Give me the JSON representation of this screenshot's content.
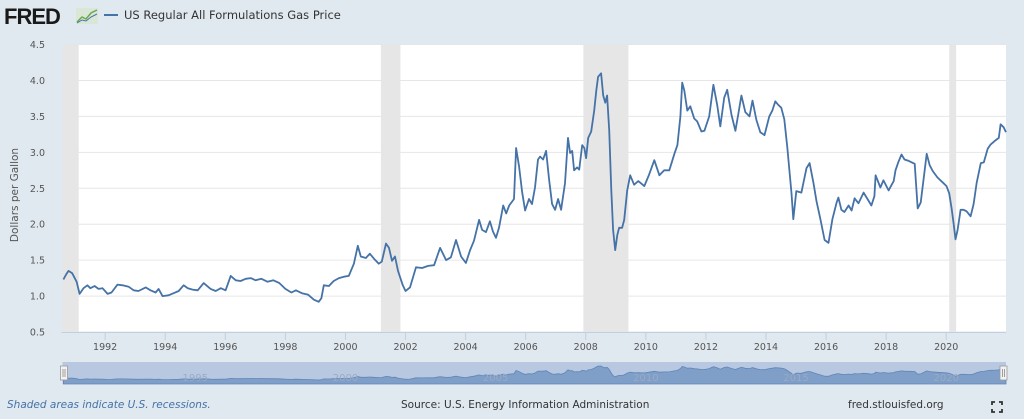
{
  "header": {
    "logo_text": "FRED",
    "logo_icon": "line-graph-icon",
    "legend_label": "US Regular All Formulations Gas Price"
  },
  "footer": {
    "recession_note": "Shaded areas indicate U.S. recessions.",
    "source": "Source: U.S. Energy Information Administration",
    "site": "fred.stlouisfed.org",
    "fullscreen_icon": "fullscreen-icon"
  },
  "colors": {
    "series": "#4572a7",
    "recession": "#e6e6e6",
    "background": "#e1e9f0",
    "navigator_fill": "#7f9ec8",
    "navigator_bg": "#b8c8e0"
  },
  "chart_data": {
    "type": "line",
    "title": "US Regular All Formulations Gas Price",
    "xlabel": "",
    "ylabel": "Dollars per Gallon",
    "xlim": [
      1990.58,
      2021.99
    ],
    "ylim": [
      0.5,
      4.5
    ],
    "yticks": [
      "0.5",
      "1.0",
      "1.5",
      "2.0",
      "2.5",
      "3.0",
      "3.5",
      "4.0",
      "4.5"
    ],
    "xticks": [
      "1992",
      "1994",
      "1996",
      "1998",
      "2000",
      "2002",
      "2004",
      "2006",
      "2008",
      "2010",
      "2012",
      "2014",
      "2016",
      "2018",
      "2020"
    ],
    "grid": true,
    "legend": "top-left",
    "recessions": [
      [
        1990.58,
        1991.12
      ],
      [
        2001.18,
        2001.83
      ],
      [
        2007.92,
        2009.42
      ],
      [
        2020.1,
        2020.33
      ]
    ],
    "navigator_labels": [
      "1995",
      "2000",
      "2005",
      "2010",
      "2015",
      "2020"
    ],
    "series": [
      {
        "name": "US Regular All Formulations Gas Price",
        "points": [
          [
            1990.61,
            1.23
          ],
          [
            1990.7,
            1.3
          ],
          [
            1990.78,
            1.35
          ],
          [
            1990.9,
            1.32
          ],
          [
            1991.05,
            1.2
          ],
          [
            1991.15,
            1.03
          ],
          [
            1991.28,
            1.11
          ],
          [
            1991.41,
            1.15
          ],
          [
            1991.51,
            1.11
          ],
          [
            1991.65,
            1.14
          ],
          [
            1991.78,
            1.1
          ],
          [
            1991.91,
            1.11
          ],
          [
            1992.08,
            1.03
          ],
          [
            1992.21,
            1.05
          ],
          [
            1992.41,
            1.16
          ],
          [
            1992.58,
            1.15
          ],
          [
            1992.78,
            1.13
          ],
          [
            1992.95,
            1.08
          ],
          [
            1993.11,
            1.07
          ],
          [
            1993.35,
            1.12
          ],
          [
            1993.51,
            1.08
          ],
          [
            1993.68,
            1.05
          ],
          [
            1993.78,
            1.1
          ],
          [
            1993.91,
            1.0
          ],
          [
            1994.11,
            1.01
          ],
          [
            1994.28,
            1.04
          ],
          [
            1994.45,
            1.07
          ],
          [
            1994.61,
            1.15
          ],
          [
            1994.75,
            1.11
          ],
          [
            1994.91,
            1.09
          ],
          [
            1995.08,
            1.08
          ],
          [
            1995.28,
            1.18
          ],
          [
            1995.51,
            1.1
          ],
          [
            1995.68,
            1.07
          ],
          [
            1995.85,
            1.11
          ],
          [
            1996.01,
            1.08
          ],
          [
            1996.18,
            1.28
          ],
          [
            1996.35,
            1.22
          ],
          [
            1996.51,
            1.21
          ],
          [
            1996.68,
            1.24
          ],
          [
            1996.85,
            1.25
          ],
          [
            1997.01,
            1.22
          ],
          [
            1997.2,
            1.24
          ],
          [
            1997.4,
            1.2
          ],
          [
            1997.6,
            1.22
          ],
          [
            1997.8,
            1.18
          ],
          [
            1998.0,
            1.1
          ],
          [
            1998.2,
            1.05
          ],
          [
            1998.35,
            1.08
          ],
          [
            1998.55,
            1.04
          ],
          [
            1998.75,
            1.02
          ],
          [
            1998.95,
            0.95
          ],
          [
            1999.11,
            0.92
          ],
          [
            1999.2,
            0.97
          ],
          [
            1999.28,
            1.15
          ],
          [
            1999.45,
            1.14
          ],
          [
            1999.61,
            1.21
          ],
          [
            1999.78,
            1.25
          ],
          [
            1999.95,
            1.27
          ],
          [
            2000.11,
            1.28
          ],
          [
            2000.28,
            1.45
          ],
          [
            2000.41,
            1.7
          ],
          [
            2000.51,
            1.55
          ],
          [
            2000.68,
            1.53
          ],
          [
            2000.81,
            1.59
          ],
          [
            2000.95,
            1.52
          ],
          [
            2001.11,
            1.45
          ],
          [
            2001.21,
            1.48
          ],
          [
            2001.35,
            1.73
          ],
          [
            2001.45,
            1.67
          ],
          [
            2001.55,
            1.49
          ],
          [
            2001.65,
            1.55
          ],
          [
            2001.75,
            1.35
          ],
          [
            2001.91,
            1.15
          ],
          [
            2002.0,
            1.07
          ],
          [
            2002.15,
            1.12
          ],
          [
            2002.35,
            1.4
          ],
          [
            2002.55,
            1.39
          ],
          [
            2002.75,
            1.42
          ],
          [
            2002.95,
            1.43
          ],
          [
            2003.15,
            1.67
          ],
          [
            2003.35,
            1.5
          ],
          [
            2003.51,
            1.54
          ],
          [
            2003.68,
            1.78
          ],
          [
            2003.85,
            1.55
          ],
          [
            2004.01,
            1.46
          ],
          [
            2004.15,
            1.64
          ],
          [
            2004.28,
            1.77
          ],
          [
            2004.45,
            2.06
          ],
          [
            2004.55,
            1.92
          ],
          [
            2004.68,
            1.89
          ],
          [
            2004.81,
            2.04
          ],
          [
            2004.91,
            1.9
          ],
          [
            2005.01,
            1.81
          ],
          [
            2005.11,
            1.95
          ],
          [
            2005.25,
            2.26
          ],
          [
            2005.35,
            2.15
          ],
          [
            2005.45,
            2.26
          ],
          [
            2005.61,
            2.35
          ],
          [
            2005.68,
            3.06
          ],
          [
            2005.78,
            2.8
          ],
          [
            2005.88,
            2.45
          ],
          [
            2005.98,
            2.19
          ],
          [
            2006.11,
            2.35
          ],
          [
            2006.21,
            2.28
          ],
          [
            2006.31,
            2.51
          ],
          [
            2006.41,
            2.9
          ],
          [
            2006.48,
            2.94
          ],
          [
            2006.58,
            2.9
          ],
          [
            2006.68,
            3.02
          ],
          [
            2006.78,
            2.62
          ],
          [
            2006.88,
            2.28
          ],
          [
            2006.98,
            2.2
          ],
          [
            2007.08,
            2.35
          ],
          [
            2007.18,
            2.2
          ],
          [
            2007.31,
            2.57
          ],
          [
            2007.41,
            3.2
          ],
          [
            2007.48,
            2.99
          ],
          [
            2007.55,
            3.02
          ],
          [
            2007.61,
            2.75
          ],
          [
            2007.71,
            2.79
          ],
          [
            2007.78,
            2.76
          ],
          [
            2007.88,
            3.1
          ],
          [
            2007.95,
            3.06
          ],
          [
            2008.01,
            2.92
          ],
          [
            2008.08,
            3.2
          ],
          [
            2008.18,
            3.29
          ],
          [
            2008.28,
            3.58
          ],
          [
            2008.35,
            3.86
          ],
          [
            2008.41,
            4.05
          ],
          [
            2008.51,
            4.1
          ],
          [
            2008.58,
            3.79
          ],
          [
            2008.65,
            3.69
          ],
          [
            2008.71,
            3.79
          ],
          [
            2008.78,
            3.31
          ],
          [
            2008.85,
            2.47
          ],
          [
            2008.91,
            1.92
          ],
          [
            2008.98,
            1.64
          ],
          [
            2009.05,
            1.85
          ],
          [
            2009.11,
            1.95
          ],
          [
            2009.21,
            1.95
          ],
          [
            2009.28,
            2.06
          ],
          [
            2009.38,
            2.47
          ],
          [
            2009.48,
            2.68
          ],
          [
            2009.61,
            2.55
          ],
          [
            2009.75,
            2.6
          ],
          [
            2009.95,
            2.53
          ],
          [
            2010.11,
            2.69
          ],
          [
            2010.28,
            2.89
          ],
          [
            2010.45,
            2.68
          ],
          [
            2010.61,
            2.75
          ],
          [
            2010.78,
            2.75
          ],
          [
            2010.95,
            2.98
          ],
          [
            2011.05,
            3.1
          ],
          [
            2011.15,
            3.5
          ],
          [
            2011.21,
            3.97
          ],
          [
            2011.28,
            3.86
          ],
          [
            2011.38,
            3.58
          ],
          [
            2011.48,
            3.64
          ],
          [
            2011.61,
            3.47
          ],
          [
            2011.71,
            3.43
          ],
          [
            2011.85,
            3.29
          ],
          [
            2011.95,
            3.3
          ],
          [
            2012.11,
            3.5
          ],
          [
            2012.25,
            3.94
          ],
          [
            2012.38,
            3.65
          ],
          [
            2012.48,
            3.36
          ],
          [
            2012.61,
            3.76
          ],
          [
            2012.71,
            3.87
          ],
          [
            2012.85,
            3.52
          ],
          [
            2012.98,
            3.3
          ],
          [
            2013.08,
            3.54
          ],
          [
            2013.18,
            3.79
          ],
          [
            2013.31,
            3.56
          ],
          [
            2013.45,
            3.5
          ],
          [
            2013.55,
            3.72
          ],
          [
            2013.68,
            3.45
          ],
          [
            2013.81,
            3.28
          ],
          [
            2013.95,
            3.24
          ],
          [
            2014.11,
            3.5
          ],
          [
            2014.21,
            3.58
          ],
          [
            2014.31,
            3.71
          ],
          [
            2014.41,
            3.66
          ],
          [
            2014.51,
            3.62
          ],
          [
            2014.61,
            3.46
          ],
          [
            2014.71,
            3.07
          ],
          [
            2014.85,
            2.43
          ],
          [
            2014.91,
            2.07
          ],
          [
            2015.01,
            2.46
          ],
          [
            2015.18,
            2.44
          ],
          [
            2015.35,
            2.78
          ],
          [
            2015.45,
            2.85
          ],
          [
            2015.58,
            2.57
          ],
          [
            2015.68,
            2.32
          ],
          [
            2015.81,
            2.07
          ],
          [
            2015.95,
            1.78
          ],
          [
            2016.08,
            1.74
          ],
          [
            2016.21,
            2.07
          ],
          [
            2016.35,
            2.3
          ],
          [
            2016.41,
            2.37
          ],
          [
            2016.51,
            2.2
          ],
          [
            2016.61,
            2.17
          ],
          [
            2016.75,
            2.26
          ],
          [
            2016.85,
            2.19
          ],
          [
            2016.95,
            2.36
          ],
          [
            2017.08,
            2.29
          ],
          [
            2017.25,
            2.44
          ],
          [
            2017.41,
            2.33
          ],
          [
            2017.51,
            2.26
          ],
          [
            2017.61,
            2.39
          ],
          [
            2017.65,
            2.68
          ],
          [
            2017.81,
            2.51
          ],
          [
            2017.91,
            2.61
          ],
          [
            2018.08,
            2.47
          ],
          [
            2018.25,
            2.6
          ],
          [
            2018.31,
            2.75
          ],
          [
            2018.41,
            2.87
          ],
          [
            2018.51,
            2.97
          ],
          [
            2018.61,
            2.9
          ],
          [
            2018.75,
            2.88
          ],
          [
            2018.95,
            2.84
          ],
          [
            2019.05,
            2.22
          ],
          [
            2019.15,
            2.3
          ],
          [
            2019.35,
            2.98
          ],
          [
            2019.45,
            2.82
          ],
          [
            2019.55,
            2.74
          ],
          [
            2019.71,
            2.65
          ],
          [
            2019.91,
            2.57
          ],
          [
            2020.01,
            2.53
          ],
          [
            2020.1,
            2.43
          ],
          [
            2020.18,
            2.22
          ],
          [
            2020.25,
            2.0
          ],
          [
            2020.31,
            1.79
          ],
          [
            2020.38,
            1.92
          ],
          [
            2020.48,
            2.2
          ],
          [
            2020.58,
            2.2
          ],
          [
            2020.68,
            2.18
          ],
          [
            2020.81,
            2.11
          ],
          [
            2020.91,
            2.28
          ],
          [
            2021.01,
            2.57
          ],
          [
            2021.15,
            2.85
          ],
          [
            2021.25,
            2.86
          ],
          [
            2021.38,
            3.05
          ],
          [
            2021.48,
            3.11
          ],
          [
            2021.65,
            3.17
          ],
          [
            2021.75,
            3.2
          ],
          [
            2021.81,
            3.39
          ],
          [
            2021.91,
            3.35
          ],
          [
            2021.99,
            3.28
          ]
        ]
      }
    ]
  }
}
